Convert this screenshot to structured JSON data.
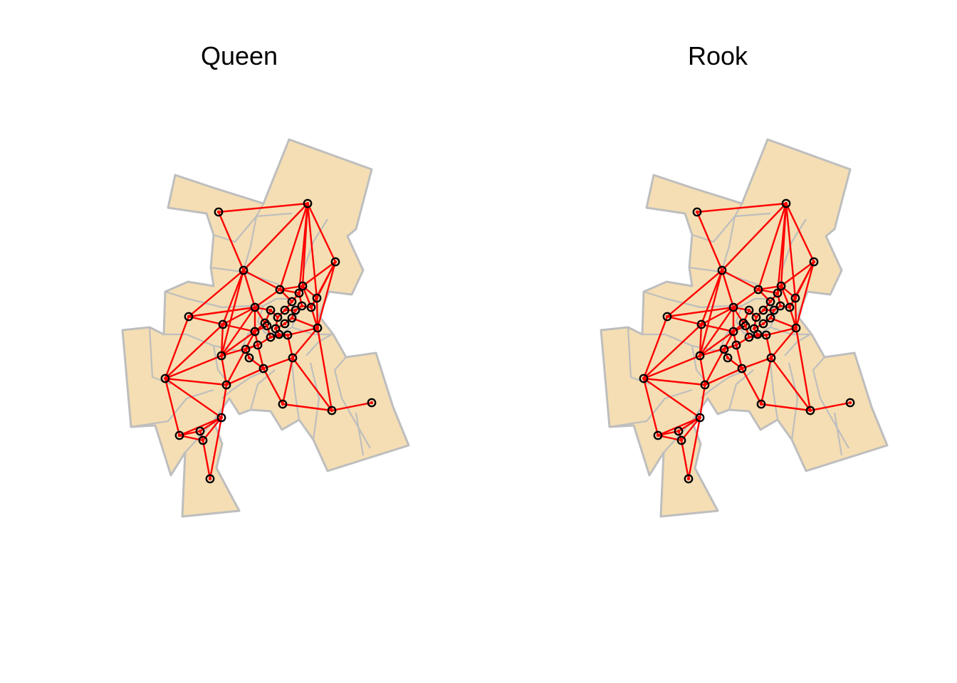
{
  "colors": {
    "region_fill": "#F5DEB3",
    "region_border": "#BEBEBE",
    "link": "#FF0000",
    "node_outline": "#000000"
  },
  "panels": [
    {
      "title": "Queen",
      "contiguity": "queen"
    },
    {
      "title": "Rook",
      "contiguity": "rook"
    }
  ]
}
